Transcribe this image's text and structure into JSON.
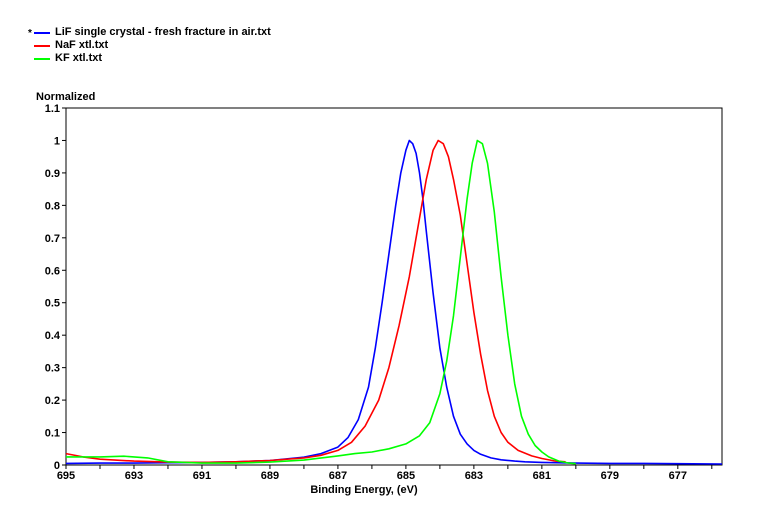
{
  "legend": [
    {
      "marker": "*",
      "label": "LiF single crystal - fresh fracture in air.txt",
      "color": "#0000ff"
    },
    {
      "marker": "",
      "label": "NaF xtl.txt",
      "color": "#ff0000"
    },
    {
      "marker": "",
      "label": "KF xtl.txt",
      "color": "#00ff00"
    }
  ],
  "chart_data": {
    "type": "line",
    "title": "",
    "xlabel": "Binding Energy, (eV)",
    "ylabel": "Normalized",
    "xlim": [
      695,
      675.7
    ],
    "ylim": [
      0,
      1.1
    ],
    "x_reversed": true,
    "x_ticks": [
      695,
      693,
      691,
      689,
      687,
      685,
      683,
      681,
      679,
      677
    ],
    "y_ticks": [
      0,
      0.1,
      0.2,
      0.3,
      0.4,
      0.5,
      0.6,
      0.7,
      0.8,
      0.9,
      1,
      1.1
    ],
    "grid": false,
    "legend_position": "top-left",
    "series": [
      {
        "name": "LiF single crystal - fresh fracture in air.txt",
        "color": "#0000ff",
        "x": [
          695,
          694,
          693,
          692,
          691,
          690,
          689,
          688,
          687.5,
          687,
          686.7,
          686.4,
          686.1,
          685.9,
          685.7,
          685.5,
          685.3,
          685.15,
          685.0,
          684.9,
          684.8,
          684.7,
          684.6,
          684.5,
          684.4,
          684.2,
          684.0,
          683.8,
          683.6,
          683.4,
          683.2,
          683.0,
          682.8,
          682.5,
          682.2,
          681.8,
          681.5,
          681,
          680,
          679,
          678,
          677,
          675.7
        ],
        "y": [
          0.005,
          0.006,
          0.006,
          0.007,
          0.008,
          0.01,
          0.014,
          0.024,
          0.035,
          0.055,
          0.085,
          0.14,
          0.24,
          0.36,
          0.5,
          0.65,
          0.8,
          0.9,
          0.97,
          1.0,
          0.99,
          0.96,
          0.9,
          0.82,
          0.72,
          0.53,
          0.36,
          0.24,
          0.15,
          0.095,
          0.065,
          0.045,
          0.033,
          0.022,
          0.016,
          0.012,
          0.01,
          0.008,
          0.006,
          0.005,
          0.005,
          0.004,
          0.003
        ]
      },
      {
        "name": "NaF xtl.txt",
        "color": "#ff0000",
        "x": [
          695,
          694.5,
          694,
          693,
          692,
          691,
          690,
          689,
          688,
          687.5,
          687,
          686.6,
          686.2,
          685.8,
          685.5,
          685.2,
          684.9,
          684.6,
          684.4,
          684.2,
          684.05,
          683.9,
          683.75,
          683.6,
          683.4,
          683.2,
          683.0,
          682.8,
          682.6,
          682.4,
          682.2,
          682.0,
          681.7,
          681.3,
          681,
          680.6,
          680.3
        ],
        "y": [
          0.035,
          0.025,
          0.018,
          0.012,
          0.009,
          0.008,
          0.01,
          0.014,
          0.022,
          0.03,
          0.045,
          0.07,
          0.12,
          0.2,
          0.3,
          0.43,
          0.58,
          0.76,
          0.88,
          0.97,
          1.0,
          0.99,
          0.95,
          0.88,
          0.77,
          0.62,
          0.47,
          0.34,
          0.23,
          0.15,
          0.1,
          0.07,
          0.045,
          0.028,
          0.02,
          0.012,
          0.01
        ]
      },
      {
        "name": "KF xtl.txt",
        "color": "#00ff00",
        "x": [
          695,
          694,
          693.3,
          692.6,
          692,
          691,
          690,
          689,
          688,
          687,
          686.5,
          686,
          685.5,
          685.0,
          684.6,
          684.3,
          684.0,
          683.8,
          683.6,
          683.4,
          683.2,
          683.05,
          682.9,
          682.75,
          682.6,
          682.4,
          682.2,
          682.0,
          681.8,
          681.6,
          681.4,
          681.2,
          681.0,
          680.8,
          680.5,
          680.2,
          680.0
        ],
        "y": [
          0.025,
          0.025,
          0.027,
          0.022,
          0.01,
          0.006,
          0.006,
          0.009,
          0.015,
          0.028,
          0.035,
          0.04,
          0.05,
          0.065,
          0.09,
          0.13,
          0.22,
          0.32,
          0.46,
          0.64,
          0.82,
          0.93,
          1.0,
          0.99,
          0.93,
          0.78,
          0.58,
          0.4,
          0.25,
          0.15,
          0.095,
          0.06,
          0.04,
          0.025,
          0.012,
          0.006,
          0.004
        ]
      }
    ]
  }
}
